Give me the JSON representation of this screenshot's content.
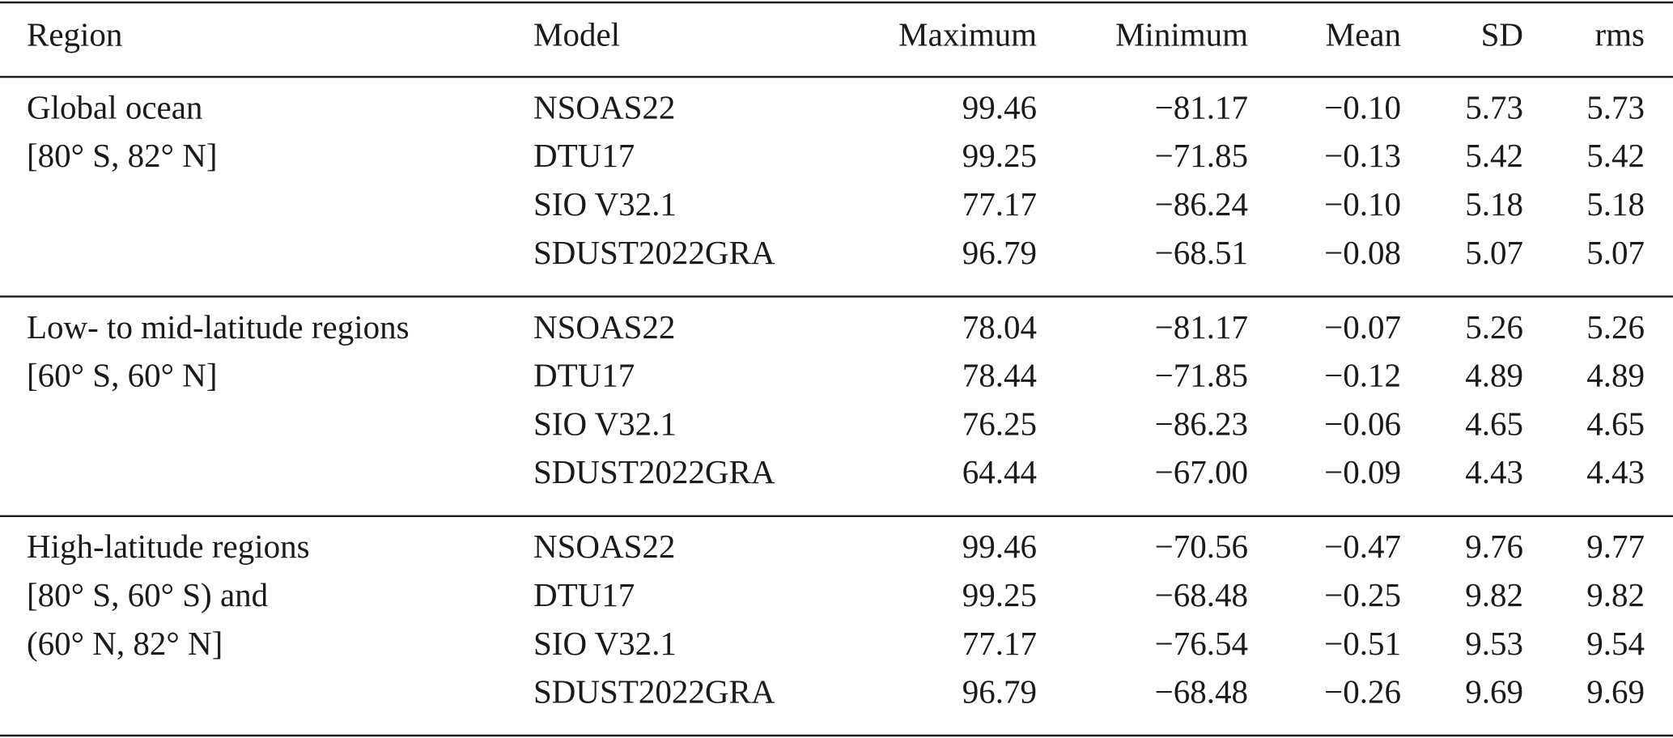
{
  "table": {
    "header": [
      "Region",
      "Model",
      "Maximum",
      "Minimum",
      "Mean",
      "SD",
      "rms"
    ],
    "groups": [
      {
        "region": [
          "Global ocean",
          "[80° S, 82° N]"
        ],
        "rows": [
          [
            "NSOAS22",
            "99.46",
            "−81.17",
            "−0.10",
            "5.73",
            "5.73"
          ],
          [
            "DTU17",
            "99.25",
            "−71.85",
            "−0.13",
            "5.42",
            "5.42"
          ],
          [
            "SIO V32.1",
            "77.17",
            "−86.24",
            "−0.10",
            "5.18",
            "5.18"
          ],
          [
            "SDUST2022GRA",
            "96.79",
            "−68.51",
            "−0.08",
            "5.07",
            "5.07"
          ]
        ]
      },
      {
        "region": [
          "Low- to mid-latitude regions",
          "[60° S, 60° N]"
        ],
        "rows": [
          [
            "NSOAS22",
            "78.04",
            "−81.17",
            "−0.07",
            "5.26",
            "5.26"
          ],
          [
            "DTU17",
            "78.44",
            "−71.85",
            "−0.12",
            "4.89",
            "4.89"
          ],
          [
            "SIO V32.1",
            "76.25",
            "−86.23",
            "−0.06",
            "4.65",
            "4.65"
          ],
          [
            "SDUST2022GRA",
            "64.44",
            "−67.00",
            "−0.09",
            "4.43",
            "4.43"
          ]
        ]
      },
      {
        "region": [
          "High-latitude regions",
          "[80° S, 60° S) and",
          "(60° N, 82° N]"
        ],
        "rows": [
          [
            "NSOAS22",
            "99.46",
            "−70.56",
            "−0.47",
            "9.76",
            "9.77"
          ],
          [
            "DTU17",
            "99.25",
            "−68.48",
            "−0.25",
            "9.82",
            "9.82"
          ],
          [
            "SIO V32.1",
            "77.17",
            "−76.54",
            "−0.51",
            "9.53",
            "9.54"
          ],
          [
            "SDUST2022GRA",
            "96.79",
            "−68.48",
            "−0.26",
            "9.69",
            "9.69"
          ]
        ]
      }
    ]
  }
}
